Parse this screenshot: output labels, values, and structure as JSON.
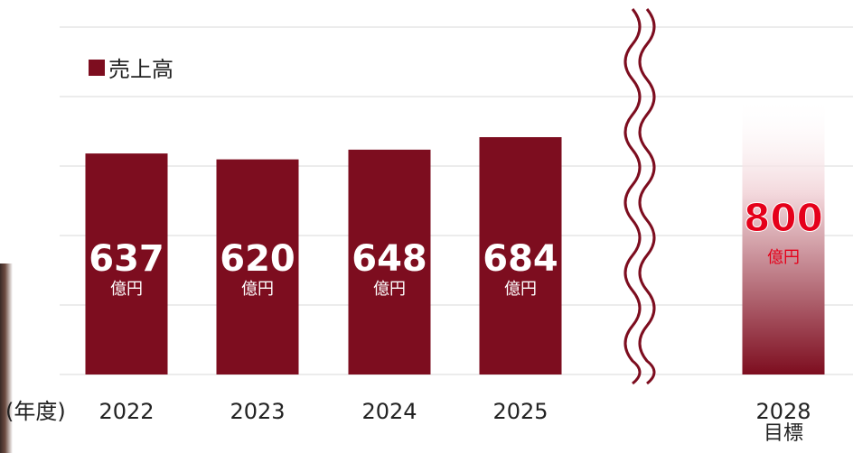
{
  "chart_data": {
    "type": "bar",
    "legend": "売上高",
    "legend_position": "top-left",
    "x_axis_unit_label": "(年度)",
    "categories": [
      "2022",
      "2023",
      "2024",
      "2025",
      "2028"
    ],
    "category_sublabels": {
      "2028": "目標"
    },
    "series": [
      {
        "values": [
          637,
          620,
          648,
          684,
          800
        ]
      }
    ],
    "data_labels": [
      {
        "value": "637",
        "unit": "億円"
      },
      {
        "value": "620",
        "unit": "億円"
      },
      {
        "value": "648",
        "unit": "億円"
      },
      {
        "value": "684",
        "unit": "億円"
      },
      {
        "value": "800",
        "unit": "億円"
      }
    ],
    "axis_break": "between 2025 and 2028",
    "grid": true,
    "colors": {
      "bar": "#7d0d1f",
      "target_label": "#e5001a",
      "grid": "#d9d9d9",
      "break_line": "#7d0d1f"
    }
  }
}
